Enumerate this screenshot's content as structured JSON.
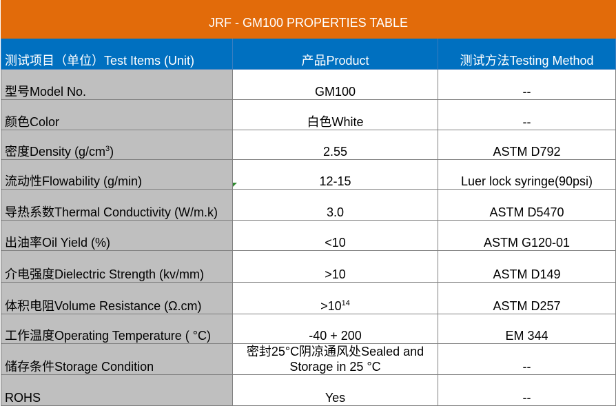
{
  "title": "JRF - GM100 PROPERTIES TABLE",
  "headers": {
    "item": "测试项目（单位）Test Items (Unit)",
    "product": "产品Product",
    "method": "测试方法Testing Method"
  },
  "rows": [
    {
      "item": "型号Model No.",
      "product": "GM100",
      "method": "--"
    },
    {
      "item": "颜色Color",
      "product": "白色White",
      "method": "--"
    },
    {
      "item": "密度Density (g/cm",
      "item_sup": "3",
      "item_after": ")",
      "product": "2.55",
      "method": "ASTM D792"
    },
    {
      "item": "流动性Flowability (g/min)",
      "product": "12-15",
      "method": "Luer lock syringe(90psi)"
    },
    {
      "item": "导热系数Thermal Conductivity (W/m.k)",
      "product": "3.0",
      "method": "ASTM D5470"
    },
    {
      "item": "出油率Oil Yield (%)",
      "product": "<10",
      "method": "ASTM G120-01"
    },
    {
      "item": "介电强度Dielectric Strength (kv/mm)",
      "product": ">10",
      "method": "ASTM D149"
    },
    {
      "item": "体积电阻Volume Resistance (Ω.cm)",
      "product": ">10",
      "product_sup": "14",
      "method": "ASTM D257"
    },
    {
      "item": "工作温度Operating Temperature ( °C)",
      "product": "-40 + 200",
      "method": "EM 344"
    },
    {
      "item": "储存条件Storage Condition",
      "product": "密封25°C阴凉通风处Sealed and Storage in 25 °C",
      "method": "--"
    },
    {
      "item": "ROHS",
      "product": "Yes",
      "method": "--"
    }
  ]
}
